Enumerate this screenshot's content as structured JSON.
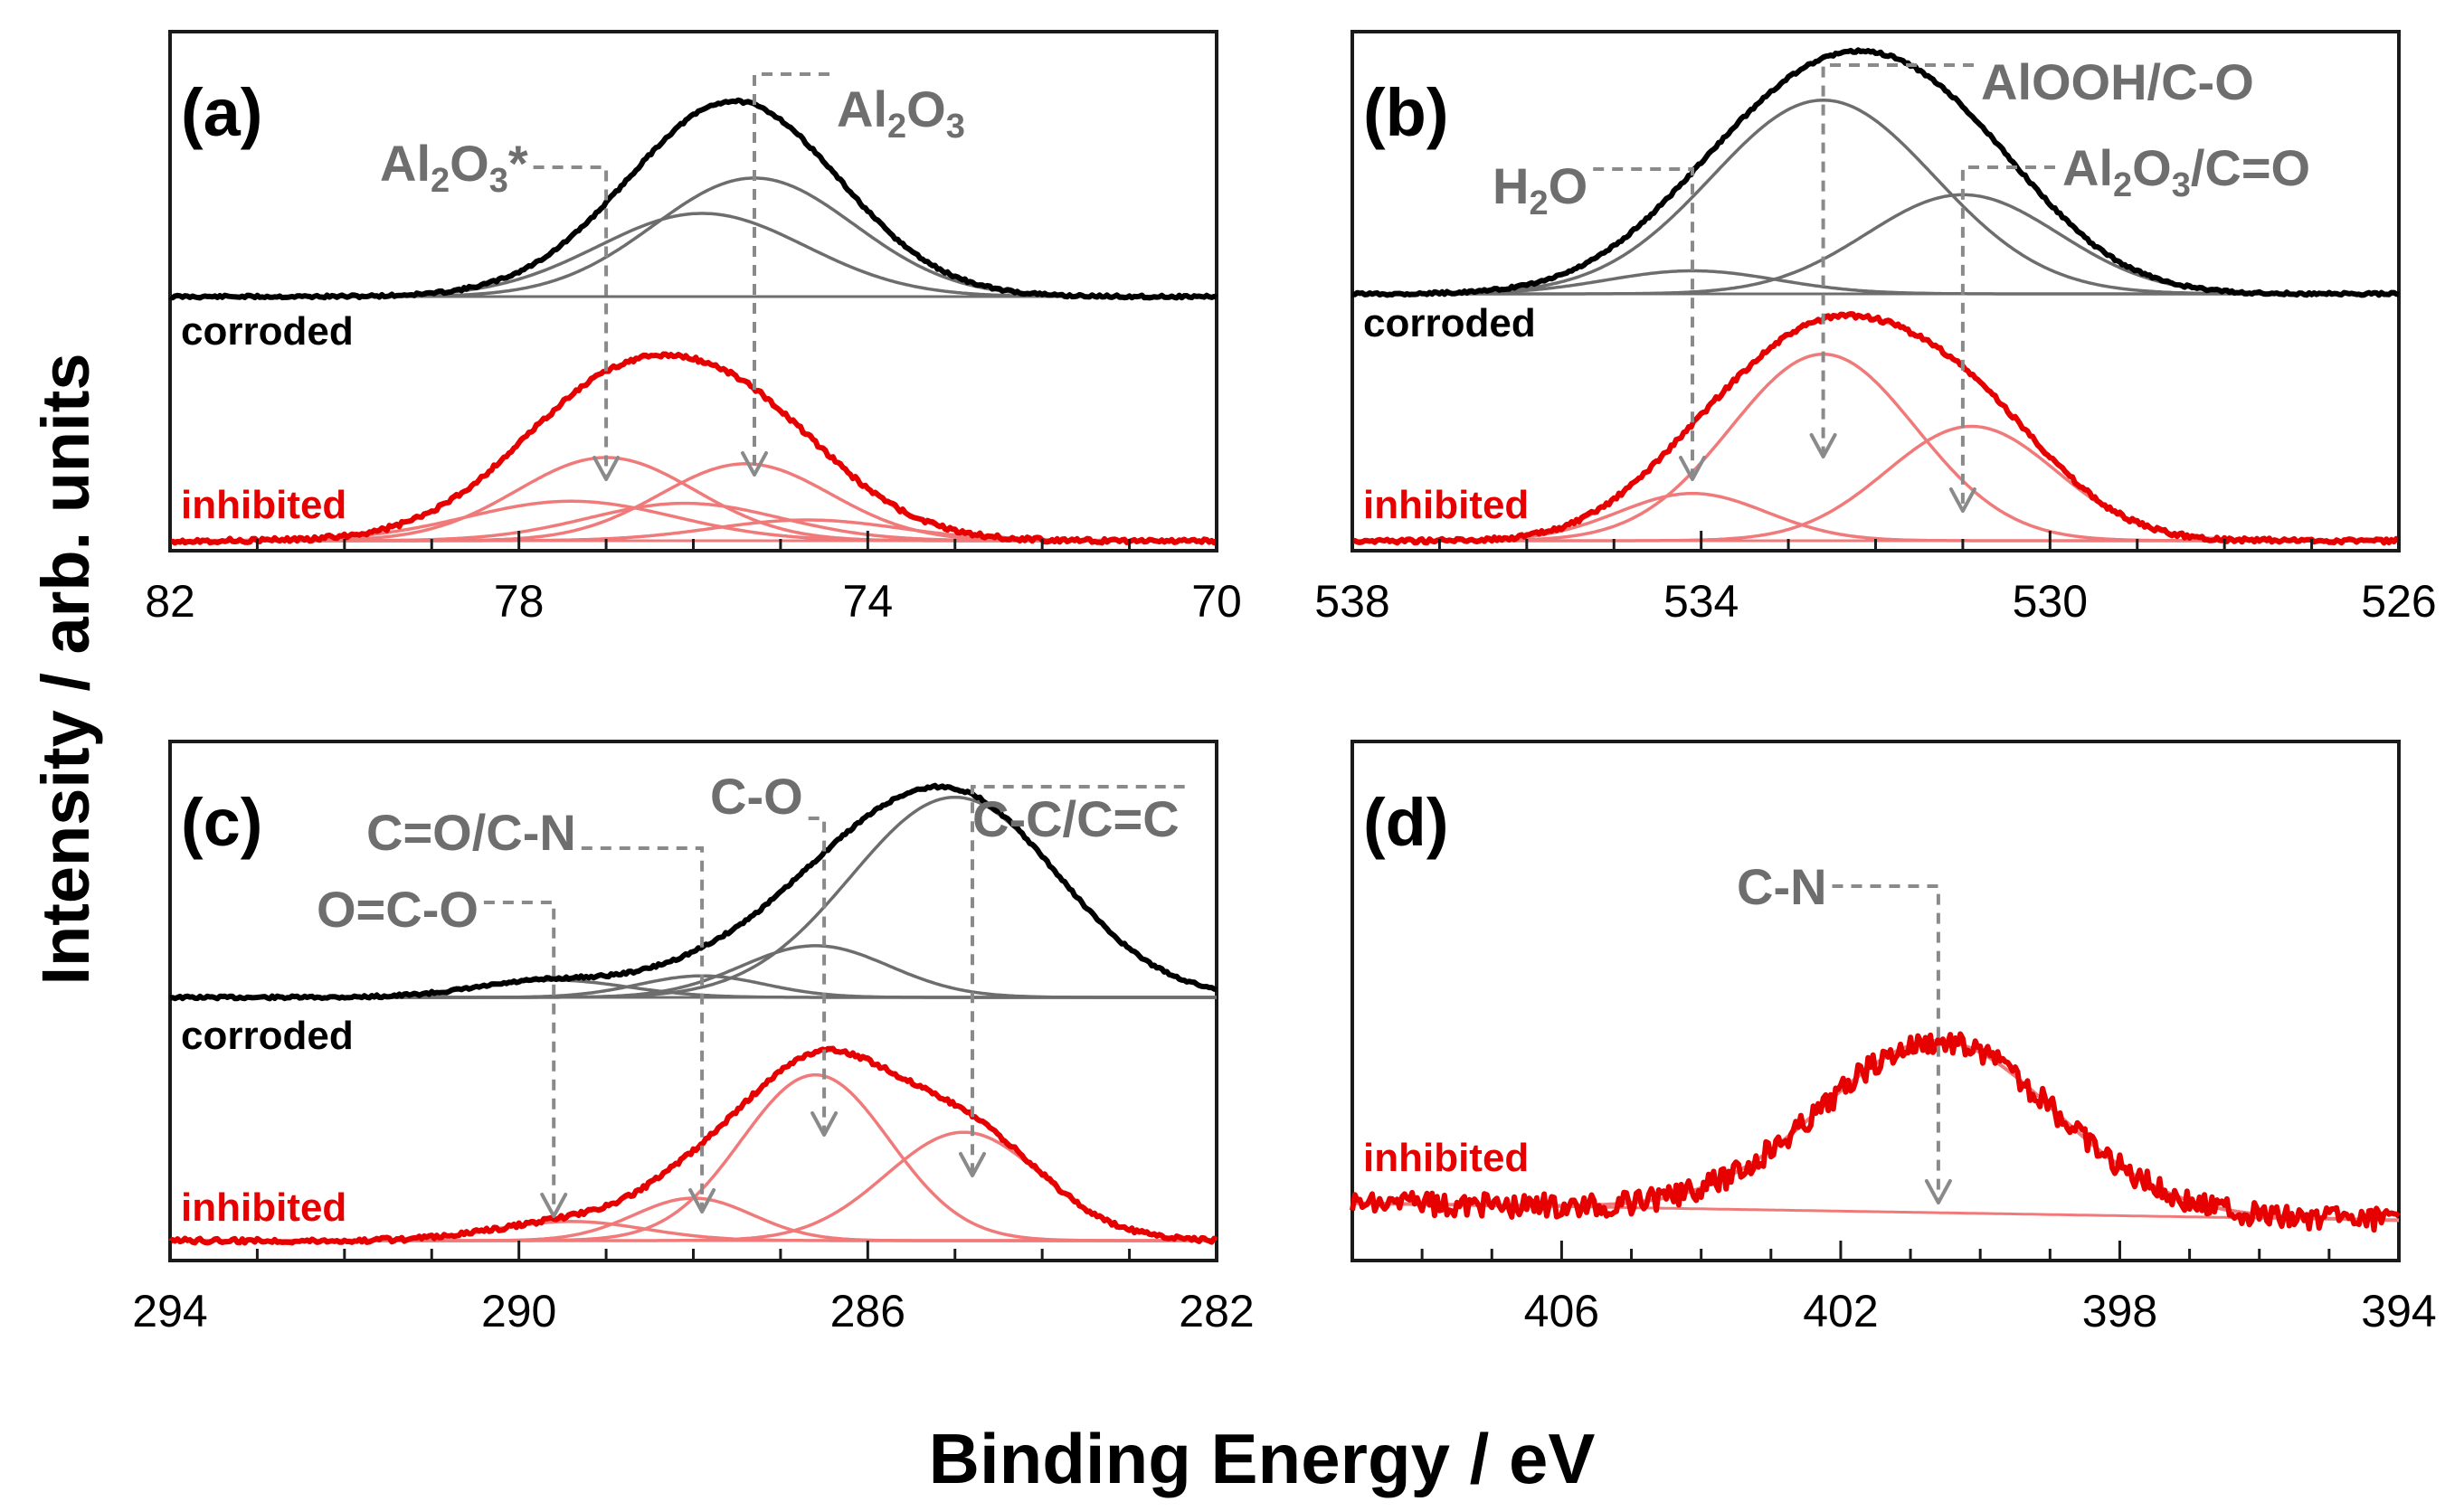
{
  "figure": {
    "ylabel": "Intensity / arb. units",
    "xlabel": "Binding Energy / eV"
  },
  "colors": {
    "corroded_envelope": "#000000",
    "corroded_component": "#6d6d6d",
    "inhibited_envelope": "#e60000",
    "inhibited_component": "#f07a7a",
    "annotation": "#7a7a7a",
    "corroded_label": "#000000",
    "inhibited_label": "#e60000"
  },
  "chart_data": [
    {
      "type": "line",
      "panel": "(a)",
      "x_range": [
        82,
        70
      ],
      "x_ticks": [
        82,
        78,
        74,
        70
      ],
      "x_tick_labels": [
        "82",
        "78",
        "74",
        "70"
      ],
      "series_labels": {
        "corroded": "corroded",
        "inhibited": "inhibited"
      },
      "corroded": {
        "components": [
          {
            "label": "Al2O3*",
            "center": 75.9,
            "amplitude": 0.4,
            "fwhm": 2.8
          },
          {
            "label": "Al2O3",
            "center": 75.3,
            "amplitude": 0.57,
            "fwhm": 2.7
          }
        ],
        "envelope_peak": 75.6
      },
      "inhibited": {
        "components": [
          {
            "center": 77.4,
            "amplitude": 0.19,
            "fwhm": 2.8
          },
          {
            "center": 77.0,
            "amplitude": 0.4,
            "fwhm": 2.4
          },
          {
            "center": 76.1,
            "amplitude": 0.18,
            "fwhm": 2.6
          },
          {
            "center": 75.4,
            "amplitude": 0.37,
            "fwhm": 2.3
          },
          {
            "center": 74.7,
            "amplitude": 0.1,
            "fwhm": 2.5
          }
        ],
        "envelope_peak": 76.5
      },
      "annotations": [
        {
          "text_main": "Al",
          "sub1": "2",
          "mid": "O",
          "sub2": "3",
          "suffix": "*",
          "x": 77.0
        },
        {
          "text_main": "Al",
          "sub1": "2",
          "mid": "O",
          "sub2": "3",
          "suffix": "",
          "x": 75.3
        }
      ]
    },
    {
      "type": "line",
      "panel": "(b)",
      "x_range": [
        538,
        526
      ],
      "x_ticks": [
        538,
        534,
        530,
        526
      ],
      "x_tick_labels": [
        "538",
        "534",
        "530",
        "526"
      ],
      "series_labels": {
        "corroded": "corroded",
        "inhibited": "inhibited"
      },
      "corroded": {
        "components": [
          {
            "label": "H2O",
            "center": 534.1,
            "amplitude": 0.1,
            "fwhm": 2.3
          },
          {
            "label": "AlOOH/C-O",
            "center": 532.6,
            "amplitude": 0.84,
            "fwhm": 3.0
          },
          {
            "label": "Al2O3/C=O",
            "center": 531.0,
            "amplitude": 0.43,
            "fwhm": 2.6
          }
        ],
        "envelope_peak": 532.3
      },
      "inhibited": {
        "components": [
          {
            "center": 534.1,
            "amplitude": 0.19,
            "fwhm": 2.0
          },
          {
            "center": 532.6,
            "amplitude": 0.75,
            "fwhm": 2.5
          },
          {
            "center": 530.9,
            "amplitude": 0.46,
            "fwhm": 2.3
          }
        ],
        "envelope_peak": 532.3
      },
      "annotations": [
        {
          "text": "H",
          "sub1": "2",
          "mid": "O",
          "x": 534.1
        },
        {
          "text": "AlOOH/C-O",
          "x": 532.6
        },
        {
          "text_main": "Al",
          "sub1": "2",
          "mid": "O",
          "sub2": "3",
          "suffix": "/C=O",
          "x": 531.0
        }
      ]
    },
    {
      "type": "line",
      "panel": "(c)",
      "x_range": [
        294,
        282
      ],
      "x_ticks": [
        294,
        290,
        286,
        282
      ],
      "x_tick_labels": [
        "294",
        "290",
        "286",
        "282"
      ],
      "series_labels": {
        "corroded": "corroded",
        "inhibited": "inhibited"
      },
      "corroded": {
        "components": [
          {
            "label": "O=C-O",
            "center": 289.6,
            "amplitude": 0.08,
            "fwhm": 2.0
          },
          {
            "label": "C=O/C-N",
            "center": 287.9,
            "amplitude": 0.1,
            "fwhm": 1.7
          },
          {
            "label": "C-O",
            "center": 286.6,
            "amplitude": 0.24,
            "fwhm": 2.0
          },
          {
            "label": "C-C/C=C",
            "center": 285.0,
            "amplitude": 0.93,
            "fwhm": 2.8
          }
        ],
        "envelope_peak": 285.3
      },
      "inhibited": {
        "components": [
          {
            "center": 289.4,
            "amplitude": 0.09,
            "fwhm": 2.0
          },
          {
            "center": 288.0,
            "amplitude": 0.2,
            "fwhm": 1.6
          },
          {
            "center": 286.6,
            "amplitude": 0.78,
            "fwhm": 2.0
          },
          {
            "center": 284.9,
            "amplitude": 0.51,
            "fwhm": 2.1
          }
        ],
        "envelope_peak": 286.2
      },
      "annotations": [
        {
          "text": "O=C-O",
          "x": 289.6
        },
        {
          "text": "C=O/C-N",
          "x": 287.9
        },
        {
          "text": "C-O",
          "x": 286.5
        },
        {
          "text": "C-C/C=C",
          "x": 284.8
        }
      ]
    },
    {
      "type": "line",
      "panel": "(d)",
      "x_range": [
        409,
        394
      ],
      "x_ticks": [
        406,
        402,
        398,
        394
      ],
      "x_tick_labels": [
        "406",
        "402",
        "398",
        "394"
      ],
      "series_labels": {
        "inhibited": "inhibited"
      },
      "inhibited": {
        "components": [
          {
            "label": "C-N",
            "center": 400.6,
            "amplitude": 1.0,
            "fwhm": 3.9
          }
        ],
        "baseline": [
          0.05,
          -0.05
        ],
        "envelope_peak": 400.5
      },
      "annotations": [
        {
          "text": "C-N",
          "x": 400.6
        }
      ]
    }
  ]
}
